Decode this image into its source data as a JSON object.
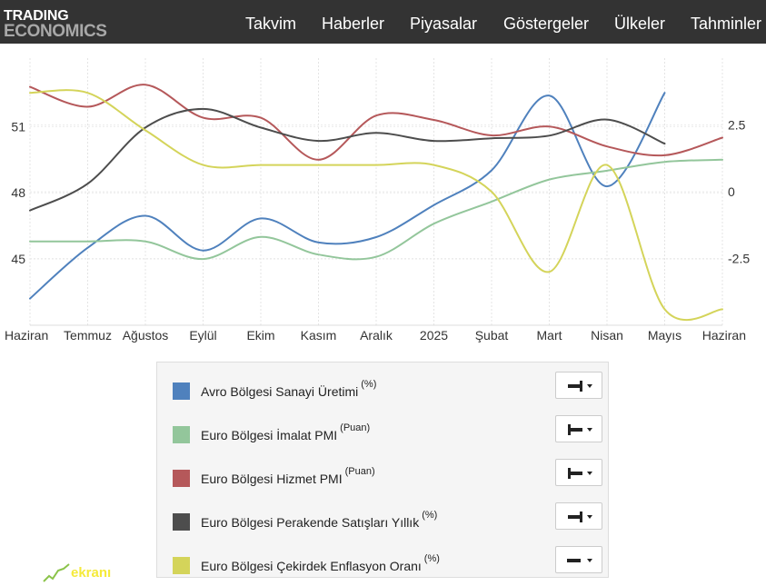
{
  "header": {
    "logo_line1": "TRADING",
    "logo_line2": "ECONOMICS",
    "nav": [
      "Takvim",
      "Haberler",
      "Piyasalar",
      "Göstergeler",
      "Ülkeler",
      "Tahminler"
    ]
  },
  "chart_data": {
    "type": "line",
    "x_labels": [
      "Haziran",
      "Temmuz",
      "Ağustos",
      "Eylül",
      "Ekim",
      "Kasım",
      "Aralık",
      "2025",
      "Şubat",
      "Mart",
      "Nisan",
      "Mayıs",
      "Haziran"
    ],
    "y_left": {
      "ticks": [
        "45",
        "48",
        "51"
      ],
      "tick_values": [
        45,
        48,
        51
      ],
      "range": [
        42.0,
        54.1
      ]
    },
    "y_right": {
      "ticks": [
        "-2.5",
        "0",
        "2.5"
      ],
      "tick_values": [
        -2.5,
        0,
        2.5
      ],
      "range": [
        -5.0,
        5.0
      ]
    },
    "grid": true,
    "series": [
      {
        "name": "Avro Bölgesi Sanayi Üretimi",
        "unit": "(%)",
        "color": "#4f81bd",
        "axis": "right",
        "x": [
          0,
          1,
          2,
          3,
          4,
          5,
          6,
          7,
          8,
          9,
          10,
          11
        ],
        "values": [
          -4.0,
          -2.1,
          -0.9,
          -2.2,
          -1.0,
          -1.9,
          -1.7,
          -0.5,
          0.8,
          3.6,
          0.2,
          3.7
        ]
      },
      {
        "name": "Euro Bölgesi İmalat PMI",
        "unit": "(Puan)",
        "color": "#93c69b",
        "axis": "left",
        "x": [
          0,
          1,
          2,
          3,
          4,
          5,
          6,
          7,
          8,
          9,
          10,
          11,
          12
        ],
        "values": [
          45.8,
          45.8,
          45.8,
          45.0,
          46.0,
          45.2,
          45.1,
          46.6,
          47.6,
          48.6,
          49.0,
          49.4,
          49.5
        ]
      },
      {
        "name": "Euro Bölgesi Hizmet PMI",
        "unit": "(Puan)",
        "color": "#b5585a",
        "axis": "left",
        "x": [
          0,
          1,
          2,
          3,
          4,
          5,
          6,
          7,
          8,
          9,
          10,
          11,
          12
        ],
        "values": [
          52.8,
          51.9,
          52.9,
          51.4,
          51.4,
          49.5,
          51.5,
          51.3,
          50.6,
          51.0,
          50.1,
          49.7,
          50.5
        ]
      },
      {
        "name": "Euro Bölgesi Perakende Satışları Yıllık",
        "unit": "(%)",
        "color": "#4d4d4d",
        "axis": "right",
        "x": [
          0,
          1,
          2,
          3,
          4,
          5,
          6,
          7,
          8,
          9,
          10,
          11
        ],
        "values": [
          -0.7,
          0.3,
          2.4,
          3.1,
          2.4,
          1.9,
          2.2,
          1.9,
          2.0,
          2.1,
          2.7,
          1.8
        ]
      },
      {
        "name": "Euro Bölgesi Çekirdek Enflasyon Oranı",
        "unit": "(%)",
        "color": "#d4d45a",
        "axis": "right",
        "x": [
          0,
          1,
          2,
          3,
          4,
          5,
          6,
          7,
          8,
          9,
          10,
          11,
          12
        ],
        "values": [
          3.7,
          3.7,
          2.3,
          1.0,
          1.0,
          1.0,
          1.0,
          1.0,
          0.0,
          -3.0,
          1.0,
          -4.4,
          -4.4
        ]
      }
    ]
  },
  "legend": {
    "items": [
      {
        "label": "Avro Bölgesi Sanayi Üretimi",
        "unit": "(%)",
        "color": "#4f81bd",
        "axis_side": "right"
      },
      {
        "label": "Euro Bölgesi İmalat PMI",
        "unit": "(Puan)",
        "color": "#93c69b",
        "axis_side": "left"
      },
      {
        "label": "Euro Bölgesi Hizmet PMI",
        "unit": "(Puan)",
        "color": "#b5585a",
        "axis_side": "left"
      },
      {
        "label": "Euro Bölgesi Perakende Satışları Yıllık",
        "unit": "(%)",
        "color": "#4d4d4d",
        "axis_side": "right"
      },
      {
        "label": "Euro Bölgesi Çekirdek Enflasyon Oranı",
        "unit": "(%)",
        "color": "#d4d45a",
        "axis_side": "none"
      }
    ]
  },
  "watermark": {
    "text": "ekranı"
  }
}
